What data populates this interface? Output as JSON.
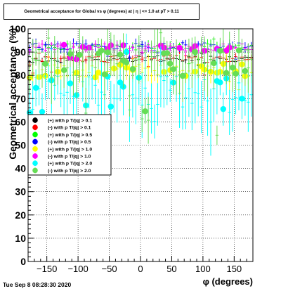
{
  "chart_data": {
    "type": "scatter",
    "title": "Geometrical acceptance for Global vs φ (degrees) at | η | <= 1.0 at pT > 0.11",
    "xlabel": "φ (degrees)",
    "ylabel": "Geometrical acceptance (%)",
    "xlim": [
      -180,
      180
    ],
    "ylim": [
      0,
      100
    ],
    "x_ticks": [
      -150,
      -100,
      -50,
      0,
      50,
      100,
      150
    ],
    "y_ticks": [
      0,
      10,
      20,
      30,
      40,
      50,
      60,
      70,
      80,
      90,
      100
    ],
    "x_tick_labels": [
      "−150",
      "−100",
      "−50",
      "0",
      "50",
      "100",
      "150"
    ],
    "y_tick_labels": [
      "0",
      "10",
      "20",
      "30",
      "40",
      "50",
      "60",
      "70",
      "80",
      "90",
      "100"
    ],
    "grid": true,
    "legend_position": "left-middle",
    "series": [
      {
        "name": "(+) with p T/|q| > 0.1",
        "color": "#000000",
        "level": 87,
        "spread": 1.5,
        "err": 1.5,
        "out_min": 80,
        "out_max": 92,
        "seed": 11
      },
      {
        "name": "(-) with p T/|q| > 0.1",
        "color": "#ff0000",
        "level": 87,
        "spread": 1.5,
        "err": 1.5,
        "out_min": 80,
        "out_max": 92,
        "seed": 23
      },
      {
        "name": "(+) with p T/|q| > 0.5",
        "color": "#00ff00",
        "level": 92,
        "spread": 1.5,
        "err": 1.5,
        "out_min": 85,
        "out_max": 96,
        "seed": 37
      },
      {
        "name": "(-) with p T/|q| > 0.5",
        "color": "#0000ff",
        "level": 92.5,
        "spread": 1.5,
        "err": 1.5,
        "out_min": 86,
        "out_max": 96,
        "seed": 41
      },
      {
        "name": "(+) with p T/|q| > 1.0",
        "color": "#ffff00",
        "level": 82,
        "spread": 3,
        "err": 4,
        "out_min": 70,
        "out_max": 92,
        "seed": 53
      },
      {
        "name": "(-) with p T/|q| > 1.0",
        "color": "#ff00ff",
        "level": 92,
        "spread": 1.5,
        "err": 1.5,
        "out_min": 86,
        "out_max": 96,
        "seed": 67
      },
      {
        "name": "(+) with p T/|q| > 2.0",
        "color": "#00ffff",
        "level": 72,
        "spread": 8,
        "err": 10,
        "out_min": 50,
        "out_max": 92,
        "seed": 79
      },
      {
        "name": "(-) with p T/|q| > 2.0",
        "color": "#66dd55",
        "level": 85,
        "spread": 6,
        "err": 8,
        "out_min": 50,
        "out_max": 100,
        "seed": 97
      }
    ],
    "n_bins": 72
  },
  "footer": "Tue Sep  8 08:28:30 2020"
}
